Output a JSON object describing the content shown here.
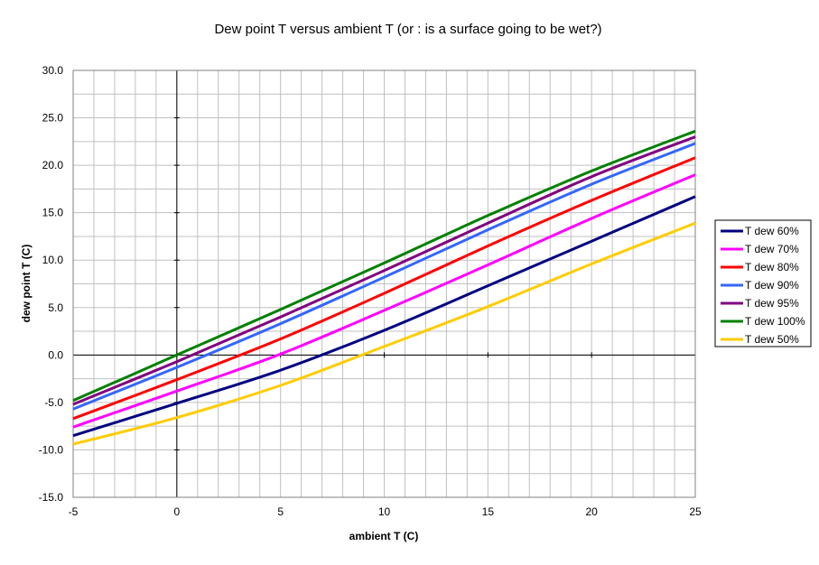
{
  "chart_data": {
    "type": "line",
    "title": "Dew point T versus ambient T (or : is a surface going to be wet?)",
    "xlabel": "ambient T (C)",
    "ylabel": "dew point T (C)",
    "xlim": [
      -5,
      25
    ],
    "ylim": [
      -15,
      30
    ],
    "x_ticks": [
      -5,
      0,
      5,
      10,
      15,
      20,
      25
    ],
    "x_tick_labels": [
      "-5",
      "0",
      "5",
      "10",
      "15",
      "20",
      "25"
    ],
    "y_ticks": [
      -15,
      -10,
      -5,
      0,
      5,
      10,
      15,
      20,
      25,
      30
    ],
    "y_tick_labels": [
      "-15.0",
      "-10.0",
      "-5.0",
      "0.0",
      "5.0",
      "10.0",
      "15.0",
      "20.0",
      "25.0",
      "30.0"
    ],
    "grid": true,
    "legend_position": "right",
    "x": [
      -5,
      0,
      5,
      10,
      15,
      20,
      25
    ],
    "series": [
      {
        "name": "T dew 60%",
        "color": "#000080",
        "values": [
          -8.5,
          -5.1,
          -1.6,
          2.6,
          7.3,
          12.0,
          16.7
        ]
      },
      {
        "name": "T dew 70%",
        "color": "#ff00ff",
        "values": [
          -7.6,
          -3.8,
          0.1,
          4.7,
          9.5,
          14.4,
          19.0
        ]
      },
      {
        "name": "T dew 80%",
        "color": "#ff0000",
        "values": [
          -6.7,
          -2.6,
          1.7,
          6.5,
          11.5,
          16.3,
          20.8
        ]
      },
      {
        "name": "T dew 90%",
        "color": "#3366ff",
        "values": [
          -5.7,
          -1.3,
          3.3,
          8.2,
          13.2,
          18.0,
          22.3
        ]
      },
      {
        "name": "T dew 95%",
        "color": "#800080",
        "values": [
          -5.2,
          -0.7,
          4.0,
          8.9,
          13.9,
          18.8,
          23.0
        ]
      },
      {
        "name": "T dew 100%",
        "color": "#008000",
        "values": [
          -4.8,
          0.0,
          4.8,
          9.7,
          14.7,
          19.4,
          23.6
        ]
      },
      {
        "name": "T dew 50%",
        "color": "#ffcc00",
        "values": [
          -9.4,
          -6.6,
          -3.2,
          0.9,
          5.1,
          9.6,
          13.9
        ]
      }
    ]
  }
}
